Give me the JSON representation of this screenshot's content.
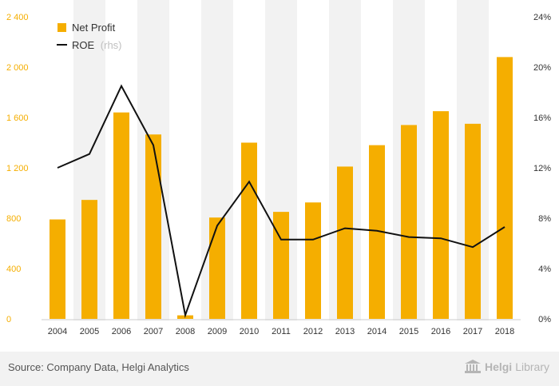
{
  "chart_data": {
    "type": "bar+line",
    "categories": [
      "2004",
      "2005",
      "2006",
      "2007",
      "2008",
      "2009",
      "2010",
      "2011",
      "2012",
      "2013",
      "2014",
      "2015",
      "2016",
      "2017",
      "2018"
    ],
    "series": [
      {
        "name": "Net Profit",
        "type": "bar",
        "axis": "left",
        "color": "#f5ae00",
        "values": [
          790,
          945,
          1640,
          1465,
          28,
          805,
          1400,
          850,
          925,
          1210,
          1380,
          1540,
          1650,
          1550,
          2080
        ]
      },
      {
        "name": "ROE",
        "name_suffix": "(rhs)",
        "type": "line",
        "axis": "right",
        "color": "#111111",
        "values": [
          12.0,
          13.1,
          18.5,
          13.8,
          0.3,
          7.4,
          10.9,
          6.3,
          6.3,
          7.2,
          7.0,
          6.5,
          6.4,
          5.7,
          7.3
        ]
      }
    ],
    "left_axis": {
      "ticks": [
        "0",
        "400",
        "800",
        "1 200",
        "1 600",
        "2 000",
        "2 400"
      ],
      "min": 0,
      "max": 2400,
      "tick_color": "#f5ae00"
    },
    "right_axis": {
      "ticks": [
        "0%",
        "4%",
        "8%",
        "12%",
        "16%",
        "20%",
        "24%"
      ],
      "min": 0,
      "max": 24
    },
    "grid": "vertical-bands",
    "legend_position": "top-left"
  },
  "footer": {
    "source": "Source: Company Data, Helgi Analytics",
    "logo_part1": "Helgi",
    "logo_part2": "Library"
  },
  "colors": {
    "bar": "#f5ae00",
    "line": "#111111",
    "band": "#f2f2f2",
    "footer_bg": "#f2f2f2"
  }
}
